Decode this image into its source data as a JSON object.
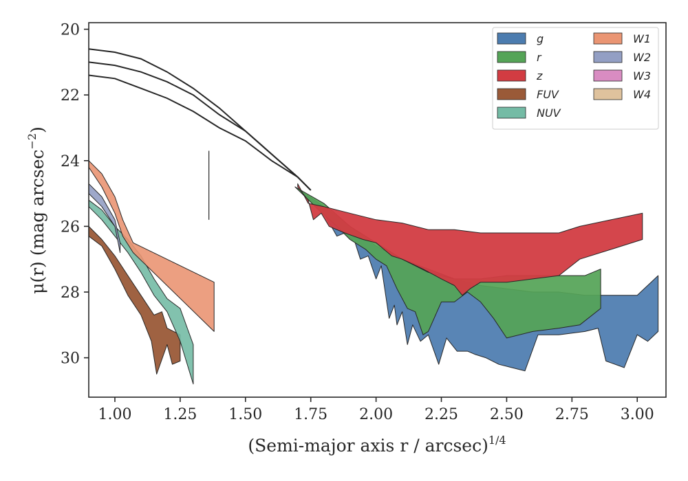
{
  "chart_data": {
    "type": "area",
    "xlabel": "(Semi-major axis r / arcsec)",
    "xlabel_exponent": "1/4",
    "ylabel": "μ(r) (mag arcsec",
    "ylabel_exponent": "−2",
    "ylabel_close": ")",
    "xlim": [
      0.9,
      3.11
    ],
    "ylim": [
      31.2,
      19.8
    ],
    "y_inverted": true,
    "x_ticks": [
      1.0,
      1.25,
      1.5,
      1.75,
      2.0,
      2.25,
      2.5,
      2.75,
      3.0
    ],
    "x_tick_labels": [
      "1.00",
      "1.25",
      "1.50",
      "1.75",
      "2.00",
      "2.25",
      "2.50",
      "2.75",
      "3.00"
    ],
    "y_ticks": [
      20,
      22,
      24,
      26,
      28,
      30
    ],
    "y_tick_labels": [
      "20",
      "22",
      "24",
      "26",
      "28",
      "30"
    ],
    "grid": false,
    "legend_placement": "top-right",
    "legend_columns": 2,
    "legend": [
      "g",
      "r",
      "z",
      "FUV",
      "NUV",
      "W1",
      "W2",
      "W3",
      "W4"
    ],
    "colors": {
      "g": "#4c7caf",
      "r": "#55a457",
      "z": "#d23c42",
      "FUV": "#9a5a38",
      "NUV": "#74bba5",
      "W1": "#ea9573",
      "W2": "#939fc4",
      "W3": "#d98cc2",
      "W4": "#dfc29d",
      "model": "#262626",
      "marker": "#262626"
    },
    "bands": [
      {
        "name": "g",
        "alpha": 0.93,
        "upper": [
          [
            1.69,
            24.8
          ],
          [
            1.8,
            25.4
          ],
          [
            1.9,
            26.0
          ],
          [
            2.0,
            26.6
          ],
          [
            2.1,
            27.0
          ],
          [
            2.2,
            27.3
          ],
          [
            2.3,
            27.6
          ],
          [
            2.4,
            27.8
          ],
          [
            2.5,
            27.9
          ],
          [
            2.6,
            28.0
          ],
          [
            2.7,
            28.0
          ],
          [
            2.8,
            28.1
          ],
          [
            2.9,
            28.1
          ],
          [
            3.0,
            28.1
          ],
          [
            3.08,
            27.5
          ]
        ],
        "lower": [
          [
            1.69,
            24.8
          ],
          [
            1.8,
            25.6
          ],
          [
            1.85,
            26.3
          ],
          [
            1.88,
            26.2
          ],
          [
            1.92,
            26.5
          ],
          [
            1.94,
            27.0
          ],
          [
            1.97,
            26.9
          ],
          [
            2.0,
            27.6
          ],
          [
            2.02,
            27.2
          ],
          [
            2.05,
            28.8
          ],
          [
            2.07,
            28.4
          ],
          [
            2.08,
            29.0
          ],
          [
            2.1,
            28.6
          ],
          [
            2.12,
            29.6
          ],
          [
            2.14,
            29.0
          ],
          [
            2.17,
            29.5
          ],
          [
            2.2,
            29.3
          ],
          [
            2.24,
            30.2
          ],
          [
            2.27,
            29.4
          ],
          [
            2.31,
            29.8
          ],
          [
            2.35,
            29.8
          ],
          [
            2.38,
            29.9
          ],
          [
            2.42,
            30.0
          ],
          [
            2.47,
            30.2
          ],
          [
            2.52,
            30.3
          ],
          [
            2.57,
            30.4
          ],
          [
            2.62,
            29.3
          ],
          [
            2.7,
            29.3
          ],
          [
            2.8,
            29.2
          ],
          [
            2.85,
            29.1
          ],
          [
            2.88,
            30.1
          ],
          [
            2.95,
            30.3
          ],
          [
            3.0,
            29.3
          ],
          [
            3.04,
            29.5
          ],
          [
            3.08,
            29.2
          ]
        ]
      },
      {
        "name": "r",
        "alpha": 0.93,
        "upper": [
          [
            1.69,
            24.8
          ],
          [
            1.8,
            25.3
          ],
          [
            1.9,
            26.0
          ],
          [
            2.0,
            26.5
          ],
          [
            2.1,
            27.0
          ],
          [
            2.2,
            27.4
          ],
          [
            2.3,
            27.6
          ],
          [
            2.4,
            27.6
          ],
          [
            2.5,
            27.5
          ],
          [
            2.6,
            27.5
          ],
          [
            2.7,
            27.5
          ],
          [
            2.8,
            27.5
          ],
          [
            2.86,
            27.3
          ]
        ],
        "lower": [
          [
            1.69,
            24.8
          ],
          [
            1.78,
            25.5
          ],
          [
            1.85,
            26.0
          ],
          [
            1.9,
            26.4
          ],
          [
            1.96,
            26.7
          ],
          [
            2.0,
            27.0
          ],
          [
            2.04,
            27.2
          ],
          [
            2.08,
            27.9
          ],
          [
            2.12,
            28.5
          ],
          [
            2.15,
            28.6
          ],
          [
            2.18,
            29.3
          ],
          [
            2.2,
            29.2
          ],
          [
            2.25,
            28.3
          ],
          [
            2.3,
            28.3
          ],
          [
            2.35,
            28.0
          ],
          [
            2.4,
            28.3
          ],
          [
            2.45,
            28.8
          ],
          [
            2.5,
            29.4
          ],
          [
            2.6,
            29.2
          ],
          [
            2.7,
            29.1
          ],
          [
            2.78,
            29.0
          ],
          [
            2.86,
            28.5
          ]
        ]
      },
      {
        "name": "z",
        "alpha": 0.95,
        "upper": [
          [
            1.7,
            24.7
          ],
          [
            1.74,
            25.3
          ],
          [
            1.8,
            25.4
          ],
          [
            1.9,
            25.6
          ],
          [
            2.0,
            25.8
          ],
          [
            2.1,
            25.9
          ],
          [
            2.2,
            26.1
          ],
          [
            2.3,
            26.1
          ],
          [
            2.4,
            26.2
          ],
          [
            2.5,
            26.2
          ],
          [
            2.6,
            26.2
          ],
          [
            2.7,
            26.2
          ],
          [
            2.78,
            26.0
          ],
          [
            2.9,
            25.8
          ],
          [
            3.02,
            25.6
          ]
        ],
        "lower": [
          [
            1.7,
            24.8
          ],
          [
            1.74,
            25.2
          ],
          [
            1.76,
            25.8
          ],
          [
            1.79,
            25.6
          ],
          [
            1.82,
            26.0
          ],
          [
            1.88,
            26.2
          ],
          [
            1.95,
            26.4
          ],
          [
            2.0,
            26.5
          ],
          [
            2.06,
            26.9
          ],
          [
            2.1,
            27.0
          ],
          [
            2.18,
            27.3
          ],
          [
            2.25,
            27.6
          ],
          [
            2.3,
            27.8
          ],
          [
            2.33,
            28.1
          ],
          [
            2.36,
            27.9
          ],
          [
            2.4,
            27.7
          ],
          [
            2.5,
            27.7
          ],
          [
            2.6,
            27.6
          ],
          [
            2.7,
            27.5
          ],
          [
            2.78,
            27.0
          ],
          [
            2.9,
            26.7
          ],
          [
            3.02,
            26.4
          ]
        ]
      },
      {
        "name": "FUV",
        "alpha": 0.95,
        "upper": [
          [
            0.9,
            26.0
          ],
          [
            0.95,
            26.4
          ],
          [
            1.0,
            26.9
          ],
          [
            1.05,
            27.5
          ],
          [
            1.1,
            28.1
          ],
          [
            1.15,
            28.7
          ],
          [
            1.18,
            28.6
          ],
          [
            1.2,
            29.1
          ],
          [
            1.25,
            29.3
          ]
        ],
        "lower": [
          [
            0.9,
            26.3
          ],
          [
            0.95,
            26.6
          ],
          [
            1.0,
            27.3
          ],
          [
            1.05,
            28.1
          ],
          [
            1.1,
            28.7
          ],
          [
            1.14,
            29.5
          ],
          [
            1.16,
            30.5
          ],
          [
            1.2,
            29.6
          ],
          [
            1.22,
            30.2
          ],
          [
            1.25,
            30.1
          ]
        ]
      },
      {
        "name": "NUV",
        "alpha": 0.9,
        "upper": [
          [
            0.9,
            25.2
          ],
          [
            0.95,
            25.5
          ],
          [
            1.0,
            26.0
          ],
          [
            1.05,
            26.4
          ],
          [
            1.1,
            26.9
          ],
          [
            1.15,
            27.6
          ],
          [
            1.2,
            28.2
          ],
          [
            1.25,
            28.5
          ],
          [
            1.3,
            29.6
          ]
        ],
        "lower": [
          [
            0.9,
            25.4
          ],
          [
            0.95,
            25.8
          ],
          [
            1.0,
            26.3
          ],
          [
            1.05,
            26.8
          ],
          [
            1.1,
            27.4
          ],
          [
            1.15,
            28.1
          ],
          [
            1.2,
            28.6
          ],
          [
            1.25,
            29.5
          ],
          [
            1.3,
            30.8
          ]
        ]
      },
      {
        "name": "W1",
        "alpha": 0.9,
        "upper": [
          [
            0.9,
            24.0
          ],
          [
            0.95,
            24.4
          ],
          [
            1.0,
            25.1
          ],
          [
            1.03,
            25.8
          ],
          [
            1.07,
            26.5
          ],
          [
            1.38,
            27.7
          ]
        ],
        "lower": [
          [
            0.9,
            24.2
          ],
          [
            0.95,
            24.8
          ],
          [
            1.0,
            25.6
          ],
          [
            1.03,
            26.3
          ],
          [
            1.07,
            26.8
          ],
          [
            1.38,
            29.2
          ]
        ]
      },
      {
        "name": "W2",
        "alpha": 0.9,
        "upper": [
          [
            0.9,
            24.7
          ],
          [
            0.95,
            25.1
          ],
          [
            1.0,
            25.8
          ],
          [
            1.02,
            26.5
          ]
        ],
        "lower": [
          [
            0.9,
            25.0
          ],
          [
            0.95,
            25.4
          ],
          [
            1.0,
            26.0
          ],
          [
            1.02,
            26.8
          ]
        ]
      }
    ],
    "model_curves": [
      {
        "x": [
          0.9,
          1.0,
          1.1,
          1.2,
          1.3,
          1.4,
          1.5,
          1.6,
          1.7,
          1.75
        ],
        "y": [
          20.6,
          20.7,
          20.9,
          21.3,
          21.8,
          22.4,
          23.1,
          23.8,
          24.5,
          24.9
        ]
      },
      {
        "x": [
          0.9,
          1.0,
          1.1,
          1.2,
          1.3,
          1.4,
          1.5,
          1.6,
          1.7,
          1.75
        ],
        "y": [
          21.0,
          21.1,
          21.3,
          21.6,
          22.0,
          22.6,
          23.1,
          23.8,
          24.5,
          24.9
        ]
      },
      {
        "x": [
          0.9,
          1.0,
          1.1,
          1.2,
          1.3,
          1.4,
          1.5,
          1.6,
          1.7,
          1.75
        ],
        "y": [
          21.4,
          21.5,
          21.8,
          22.1,
          22.5,
          23.0,
          23.4,
          24.0,
          24.5,
          24.9
        ]
      }
    ],
    "marker_line": {
      "x": 1.36,
      "y": [
        23.7,
        25.8
      ]
    }
  }
}
